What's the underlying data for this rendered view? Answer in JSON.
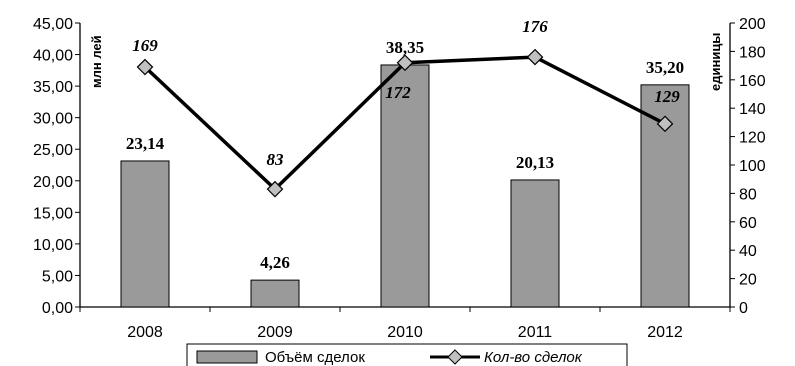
{
  "chart_data": {
    "type": "bar",
    "categories": [
      "2008",
      "2009",
      "2010",
      "2011",
      "2012"
    ],
    "y_left": {
      "label": "млн лей",
      "min": 0,
      "max": 45,
      "ticks": [
        "0,00",
        "5,00",
        "10,00",
        "15,00",
        "20,00",
        "25,00",
        "30,00",
        "35,00",
        "40,00",
        "45,00"
      ]
    },
    "y_right": {
      "label": "единицы",
      "min": 0,
      "max": 200,
      "ticks": [
        "0",
        "20",
        "40",
        "60",
        "80",
        "100",
        "120",
        "140",
        "160",
        "180",
        "200"
      ]
    },
    "series": [
      {
        "name": "Объём сделок",
        "type": "bar",
        "axis": "left",
        "values": [
          23.14,
          4.26,
          38.35,
          20.13,
          35.2
        ],
        "labels": [
          "23,14",
          "4,26",
          "38,35",
          "20,13",
          "35,20"
        ],
        "color": "#9a9a9a"
      },
      {
        "name": "Кол-во сделок",
        "type": "line",
        "axis": "right",
        "values": [
          169,
          83,
          172,
          176,
          129
        ],
        "labels": [
          "169",
          "83",
          "172",
          "176",
          "129"
        ],
        "color": "#000000",
        "marker_color": "#c0c0c0"
      }
    ],
    "grid": false,
    "legend": "bottom"
  }
}
